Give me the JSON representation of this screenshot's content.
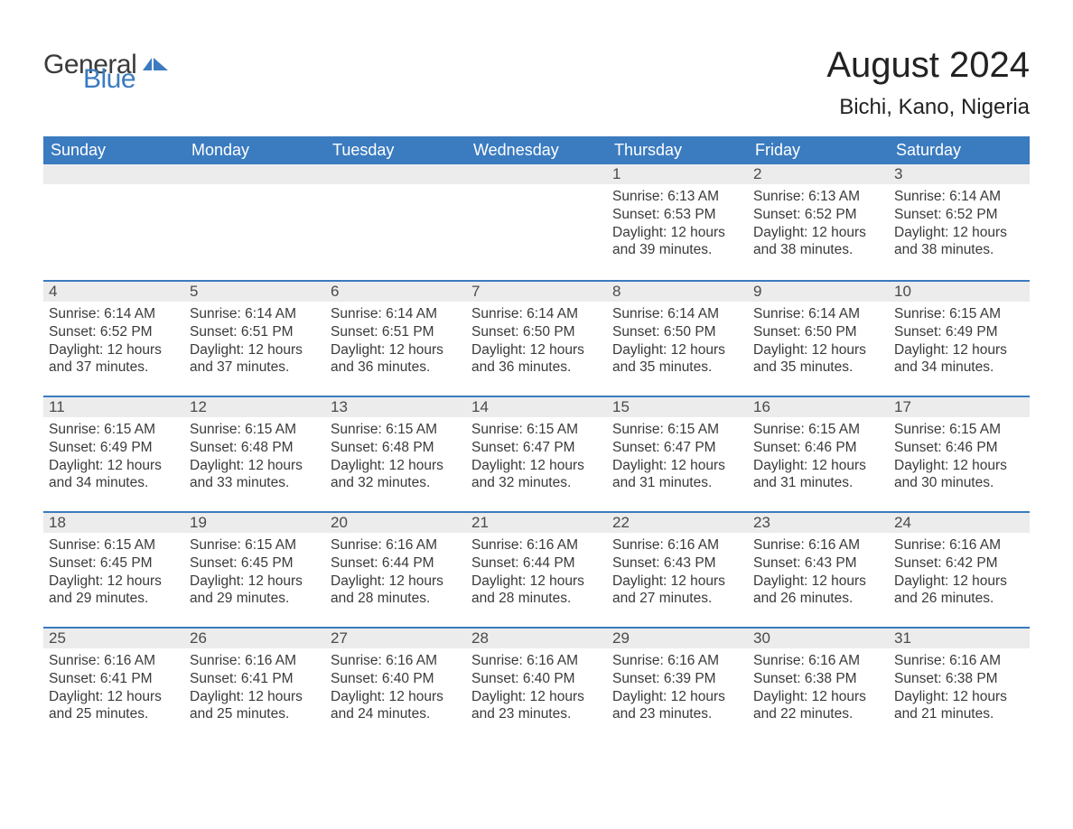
{
  "branding": {
    "word1": "General",
    "word2": "Blue",
    "text_color": "#3a3a3a",
    "accent_color": "#3b7bbf"
  },
  "header": {
    "title": "August 2024",
    "location": "Bichi, Kano, Nigeria",
    "title_fontsize": 40,
    "location_fontsize": 24
  },
  "style": {
    "header_bg": "#3b7bbf",
    "header_text": "#ffffff",
    "daynum_bg": "#ececec",
    "border_color": "#3b7bbf",
    "body_text": "#3a3a3a",
    "cell_fontsize": 15.5,
    "header_fontsize": 18,
    "page_bg": "#ffffff"
  },
  "weekdays": [
    "Sunday",
    "Monday",
    "Tuesday",
    "Wednesday",
    "Thursday",
    "Friday",
    "Saturday"
  ],
  "leading_blanks": 4,
  "days": [
    {
      "n": 1,
      "sunrise": "6:13 AM",
      "sunset": "6:53 PM",
      "daylight": "12 hours and 39 minutes."
    },
    {
      "n": 2,
      "sunrise": "6:13 AM",
      "sunset": "6:52 PM",
      "daylight": "12 hours and 38 minutes."
    },
    {
      "n": 3,
      "sunrise": "6:14 AM",
      "sunset": "6:52 PM",
      "daylight": "12 hours and 38 minutes."
    },
    {
      "n": 4,
      "sunrise": "6:14 AM",
      "sunset": "6:52 PM",
      "daylight": "12 hours and 37 minutes."
    },
    {
      "n": 5,
      "sunrise": "6:14 AM",
      "sunset": "6:51 PM",
      "daylight": "12 hours and 37 minutes."
    },
    {
      "n": 6,
      "sunrise": "6:14 AM",
      "sunset": "6:51 PM",
      "daylight": "12 hours and 36 minutes."
    },
    {
      "n": 7,
      "sunrise": "6:14 AM",
      "sunset": "6:50 PM",
      "daylight": "12 hours and 36 minutes."
    },
    {
      "n": 8,
      "sunrise": "6:14 AM",
      "sunset": "6:50 PM",
      "daylight": "12 hours and 35 minutes."
    },
    {
      "n": 9,
      "sunrise": "6:14 AM",
      "sunset": "6:50 PM",
      "daylight": "12 hours and 35 minutes."
    },
    {
      "n": 10,
      "sunrise": "6:15 AM",
      "sunset": "6:49 PM",
      "daylight": "12 hours and 34 minutes."
    },
    {
      "n": 11,
      "sunrise": "6:15 AM",
      "sunset": "6:49 PM",
      "daylight": "12 hours and 34 minutes."
    },
    {
      "n": 12,
      "sunrise": "6:15 AM",
      "sunset": "6:48 PM",
      "daylight": "12 hours and 33 minutes."
    },
    {
      "n": 13,
      "sunrise": "6:15 AM",
      "sunset": "6:48 PM",
      "daylight": "12 hours and 32 minutes."
    },
    {
      "n": 14,
      "sunrise": "6:15 AM",
      "sunset": "6:47 PM",
      "daylight": "12 hours and 32 minutes."
    },
    {
      "n": 15,
      "sunrise": "6:15 AM",
      "sunset": "6:47 PM",
      "daylight": "12 hours and 31 minutes."
    },
    {
      "n": 16,
      "sunrise": "6:15 AM",
      "sunset": "6:46 PM",
      "daylight": "12 hours and 31 minutes."
    },
    {
      "n": 17,
      "sunrise": "6:15 AM",
      "sunset": "6:46 PM",
      "daylight": "12 hours and 30 minutes."
    },
    {
      "n": 18,
      "sunrise": "6:15 AM",
      "sunset": "6:45 PM",
      "daylight": "12 hours and 29 minutes."
    },
    {
      "n": 19,
      "sunrise": "6:15 AM",
      "sunset": "6:45 PM",
      "daylight": "12 hours and 29 minutes."
    },
    {
      "n": 20,
      "sunrise": "6:16 AM",
      "sunset": "6:44 PM",
      "daylight": "12 hours and 28 minutes."
    },
    {
      "n": 21,
      "sunrise": "6:16 AM",
      "sunset": "6:44 PM",
      "daylight": "12 hours and 28 minutes."
    },
    {
      "n": 22,
      "sunrise": "6:16 AM",
      "sunset": "6:43 PM",
      "daylight": "12 hours and 27 minutes."
    },
    {
      "n": 23,
      "sunrise": "6:16 AM",
      "sunset": "6:43 PM",
      "daylight": "12 hours and 26 minutes."
    },
    {
      "n": 24,
      "sunrise": "6:16 AM",
      "sunset": "6:42 PM",
      "daylight": "12 hours and 26 minutes."
    },
    {
      "n": 25,
      "sunrise": "6:16 AM",
      "sunset": "6:41 PM",
      "daylight": "12 hours and 25 minutes."
    },
    {
      "n": 26,
      "sunrise": "6:16 AM",
      "sunset": "6:41 PM",
      "daylight": "12 hours and 25 minutes."
    },
    {
      "n": 27,
      "sunrise": "6:16 AM",
      "sunset": "6:40 PM",
      "daylight": "12 hours and 24 minutes."
    },
    {
      "n": 28,
      "sunrise": "6:16 AM",
      "sunset": "6:40 PM",
      "daylight": "12 hours and 23 minutes."
    },
    {
      "n": 29,
      "sunrise": "6:16 AM",
      "sunset": "6:39 PM",
      "daylight": "12 hours and 23 minutes."
    },
    {
      "n": 30,
      "sunrise": "6:16 AM",
      "sunset": "6:38 PM",
      "daylight": "12 hours and 22 minutes."
    },
    {
      "n": 31,
      "sunrise": "6:16 AM",
      "sunset": "6:38 PM",
      "daylight": "12 hours and 21 minutes."
    }
  ],
  "labels": {
    "sunrise": "Sunrise:",
    "sunset": "Sunset:",
    "daylight": "Daylight:"
  }
}
